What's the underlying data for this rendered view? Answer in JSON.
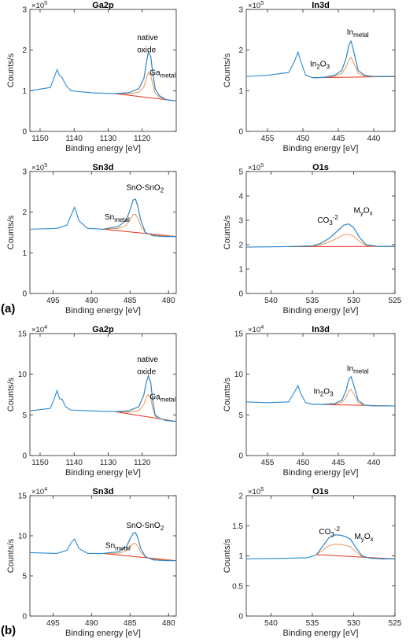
{
  "figure": {
    "panel_labels": [
      "(a)",
      "(b)"
    ]
  },
  "colors": {
    "axis": "#262626",
    "measured": "#2b8bd4",
    "fit_envelope": "#555555",
    "component": "#f08a3c",
    "background": "#e8321c"
  },
  "chart_data": [
    {
      "type": "line",
      "panel": "(a)",
      "title": "Ga2p",
      "xlabel": "Binding energy [eV]",
      "ylabel": "Counts/s",
      "exponent_label": "×10",
      "exponent": "5",
      "xlim": [
        1153,
        1110
      ],
      "ylim": [
        0,
        3
      ],
      "xticks": [
        1150,
        1140,
        1130,
        1120
      ],
      "yticks": [
        0,
        1,
        2,
        3
      ],
      "series": [
        {
          "x": [
            1153,
            1147,
            1146,
            1145,
            1144.3,
            1143.5,
            1142.5,
            1141,
            1135,
            1128,
            1124,
            1121,
            1119.5,
            1118.8,
            1118.2,
            1117.5,
            1117,
            1116.2,
            1115,
            1113,
            1110
          ],
          "y": [
            1.0,
            1.08,
            1.3,
            1.52,
            1.38,
            1.32,
            1.15,
            1.0,
            0.95,
            0.93,
            0.95,
            1.05,
            1.3,
            1.68,
            1.95,
            1.85,
            1.5,
            1.05,
            0.88,
            0.78,
            0.75
          ]
        }
      ],
      "annotations": [
        {
          "text": "native",
          "x": 1121.5,
          "y": 2.25
        },
        {
          "text": "oxide",
          "x": 1121.5,
          "y": 1.95
        },
        {
          "text": "Ga",
          "sub": "metal",
          "x": 1117.8,
          "y": 1.38
        }
      ]
    },
    {
      "type": "line",
      "panel": "(a)",
      "title": "In3d",
      "xlabel": "Binding energy [eV]",
      "ylabel": "Counts/s",
      "exponent_label": "×10",
      "exponent": "5",
      "xlim": [
        458,
        437
      ],
      "ylim": [
        0,
        3
      ],
      "xticks": [
        455,
        450,
        445,
        440
      ],
      "yticks": [
        0,
        1,
        2,
        3
      ],
      "series": [
        {
          "x": [
            458,
            455,
            452,
            451.2,
            450.7,
            450.3,
            449.6,
            448.6,
            447,
            445.5,
            444.5,
            443.9,
            443.5,
            443.2,
            442.8,
            442.2,
            441.3,
            440,
            437
          ],
          "y": [
            1.35,
            1.38,
            1.45,
            1.72,
            1.95,
            1.72,
            1.38,
            1.32,
            1.33,
            1.38,
            1.5,
            1.8,
            2.12,
            2.22,
            1.95,
            1.5,
            1.38,
            1.35,
            1.35
          ]
        }
      ],
      "annotations": [
        {
          "text": "In",
          "sub": "metal",
          "x": 443.8,
          "y": 2.38
        },
        {
          "text": "In",
          "parts": [
            "2",
            "O",
            "3"
          ],
          "x": 449.0,
          "y": 1.6
        }
      ]
    },
    {
      "type": "line",
      "panel": "(a)",
      "title": "Sn3d",
      "xlabel": "Binding energy [eV]",
      "ylabel": "Counts/s",
      "exponent_label": "×10",
      "exponent": "5",
      "xlim": [
        498,
        479
      ],
      "ylim": [
        0,
        3
      ],
      "xticks": [
        495,
        490,
        485,
        480
      ],
      "yticks": [
        0,
        1,
        2,
        3
      ],
      "series": [
        {
          "x": [
            498,
            494.5,
            493.2,
            492.6,
            492.2,
            491.6,
            490.5,
            488.5,
            486.5,
            485.5,
            485,
            484.6,
            484.3,
            484,
            483.6,
            483,
            482,
            480.5,
            479
          ],
          "y": [
            1.58,
            1.6,
            1.68,
            1.95,
            2.12,
            1.78,
            1.6,
            1.58,
            1.65,
            1.8,
            2.05,
            2.3,
            2.32,
            2.15,
            1.8,
            1.5,
            1.42,
            1.4,
            1.4
          ]
        }
      ],
      "annotations": [
        {
          "text": "SnO-SnO",
          "sub": "2",
          "x": 485.5,
          "y": 2.55
        },
        {
          "text": "Sn",
          "sub": "metal",
          "x": 488.3,
          "y": 1.82
        }
      ]
    },
    {
      "type": "line",
      "panel": "(a)",
      "title": "O1s",
      "xlabel": "Binding energy [eV]",
      "ylabel": "Counts/s",
      "exponent_label": "×10",
      "exponent": "5",
      "xlim": [
        543,
        525
      ],
      "ylim": [
        0,
        5
      ],
      "xticks": [
        540,
        535,
        530,
        525
      ],
      "yticks": [
        0,
        1,
        2,
        3,
        4,
        5
      ],
      "series": [
        {
          "x": [
            543,
            538,
            535,
            534,
            533,
            532,
            531.2,
            530.6,
            530,
            529.3,
            528.5,
            527,
            525
          ],
          "y": [
            1.9,
            1.92,
            1.95,
            2.05,
            2.25,
            2.55,
            2.8,
            2.85,
            2.7,
            2.3,
            2.0,
            1.93,
            1.93
          ]
        }
      ],
      "annotations": [
        {
          "text": "CO",
          "parts": [
            "3",
            "-2"
          ],
          "x": 534.4,
          "y": 2.9
        },
        {
          "text": "M",
          "parts": [
            "y",
            "O",
            "x"
          ],
          "x": 530.0,
          "y": 3.3
        }
      ]
    },
    {
      "type": "line",
      "panel": "(b)",
      "title": "Ga2p",
      "xlabel": "Binding energy [eV]",
      "ylabel": "Counts/s",
      "exponent_label": "×10",
      "exponent": "4",
      "xlim": [
        1153,
        1110
      ],
      "ylim": [
        0,
        15
      ],
      "xticks": [
        1150,
        1140,
        1130,
        1120
      ],
      "yticks": [
        0,
        5,
        10,
        15
      ],
      "series": [
        {
          "x": [
            1153,
            1147,
            1146,
            1145,
            1144.3,
            1143.5,
            1142.5,
            1141,
            1135,
            1128,
            1124,
            1121,
            1119.5,
            1118.8,
            1118.2,
            1117.5,
            1117,
            1116.2,
            1115,
            1113,
            1110
          ],
          "y": [
            5.5,
            5.8,
            6.8,
            8.0,
            7.0,
            6.9,
            6.0,
            5.6,
            5.5,
            5.4,
            5.5,
            6.0,
            7.5,
            9.0,
            9.8,
            9.0,
            7.0,
            5.0,
            4.6,
            4.3,
            4.2
          ]
        }
      ],
      "annotations": [
        {
          "text": "native",
          "x": 1121.5,
          "y": 11.5
        },
        {
          "text": "oxide",
          "x": 1121.5,
          "y": 10.0
        },
        {
          "text": "Ga",
          "sub": "metal",
          "x": 1117.8,
          "y": 6.9
        }
      ]
    },
    {
      "type": "line",
      "panel": "(b)",
      "title": "In3d",
      "xlabel": "Binding energy [eV]",
      "ylabel": "Counts/s",
      "exponent_label": "×10",
      "exponent": "4",
      "xlim": [
        458,
        437
      ],
      "ylim": [
        0,
        15
      ],
      "xticks": [
        455,
        450,
        445,
        440
      ],
      "yticks": [
        0,
        5,
        10,
        15
      ],
      "series": [
        {
          "x": [
            458,
            455,
            452,
            451.2,
            450.7,
            450.3,
            449.6,
            448.6,
            447,
            445.5,
            444.5,
            443.9,
            443.5,
            443.2,
            442.8,
            442.2,
            441.3,
            440,
            437
          ],
          "y": [
            6.6,
            6.5,
            6.6,
            7.8,
            8.6,
            7.6,
            6.5,
            6.3,
            6.3,
            6.4,
            6.8,
            8.0,
            9.4,
            9.7,
            8.6,
            6.8,
            6.2,
            6.1,
            6.1
          ]
        }
      ],
      "annotations": [
        {
          "text": "In",
          "sub": "metal",
          "x": 443.8,
          "y": 10.4
        },
        {
          "text": "In",
          "parts": [
            "2",
            "O",
            "3"
          ],
          "x": 448.5,
          "y": 7.6
        }
      ]
    },
    {
      "type": "line",
      "panel": "(b)",
      "title": "Sn3d",
      "xlabel": "Binding energy [eV]",
      "ylabel": "Counts/s",
      "exponent_label": "×10",
      "exponent": "4",
      "xlim": [
        498,
        479
      ],
      "ylim": [
        0,
        15
      ],
      "xticks": [
        495,
        490,
        485,
        480
      ],
      "yticks": [
        0,
        5,
        10,
        15
      ],
      "series": [
        {
          "x": [
            498,
            494.5,
            493.2,
            492.6,
            492.2,
            491.6,
            490.5,
            488.5,
            486.5,
            485.5,
            485,
            484.6,
            484.3,
            484,
            483.6,
            483,
            482,
            480.5,
            479
          ],
          "y": [
            7.9,
            7.8,
            8.2,
            9.2,
            9.6,
            8.4,
            7.8,
            7.8,
            8.0,
            8.6,
            9.6,
            10.3,
            10.4,
            9.8,
            8.4,
            7.4,
            7.0,
            6.9,
            6.9
          ]
        }
      ],
      "annotations": [
        {
          "text": "SnO-SnO",
          "sub": "2",
          "x": 485.5,
          "y": 11.0
        },
        {
          "text": "Sn",
          "sub": "metal",
          "x": 488.2,
          "y": 8.5
        }
      ]
    },
    {
      "type": "line",
      "panel": "(b)",
      "title": "O1s",
      "xlabel": "Binding energy [eV]",
      "ylabel": "Counts/s",
      "exponent_label": "×10",
      "exponent": "5",
      "xlim": [
        543,
        525
      ],
      "ylim": [
        0,
        2
      ],
      "xticks": [
        540,
        535,
        530,
        525
      ],
      "yticks": [
        0,
        0.5,
        1,
        1.5,
        2
      ],
      "series": [
        {
          "x": [
            543,
            538,
            535.5,
            534.5,
            533.8,
            533,
            532.2,
            531.5,
            531,
            530.4,
            529.8,
            529,
            528,
            526.5,
            525
          ],
          "y": [
            0.95,
            0.96,
            0.97,
            1.02,
            1.15,
            1.3,
            1.35,
            1.34,
            1.32,
            1.28,
            1.15,
            1.0,
            0.96,
            0.95,
            0.95
          ]
        }
      ],
      "annotations": [
        {
          "text": "CO",
          "parts": [
            "3",
            "-2"
          ],
          "x": 534.2,
          "y": 1.36
        },
        {
          "text": "M",
          "parts": [
            "y",
            "O",
            "x"
          ],
          "x": 529.9,
          "y": 1.28
        }
      ]
    }
  ]
}
